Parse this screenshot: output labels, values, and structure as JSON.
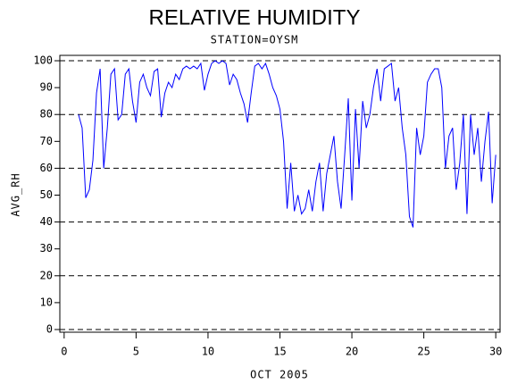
{
  "chart_data": {
    "type": "line",
    "title": "RELATIVE HUMIDITY",
    "subtitle": "STATION=OYSM",
    "x_label": "OCT 2005",
    "y_label": "AVG_RH",
    "xlim": [
      -0.3,
      30.3
    ],
    "ylim": [
      -1,
      102
    ],
    "xticks": [
      0,
      5,
      10,
      15,
      20,
      25,
      30
    ],
    "yticks": [
      0,
      10,
      20,
      30,
      40,
      50,
      60,
      70,
      80,
      90,
      100
    ],
    "grid_lines": [
      0,
      20,
      40,
      60,
      80,
      100
    ],
    "x": [
      1,
      1.25,
      1.5,
      1.75,
      2,
      2.25,
      2.5,
      2.75,
      3,
      3.25,
      3.5,
      3.75,
      4,
      4.25,
      4.5,
      4.75,
      5,
      5.25,
      5.5,
      5.75,
      6,
      6.25,
      6.5,
      6.75,
      7,
      7.25,
      7.5,
      7.75,
      8,
      8.25,
      8.5,
      8.75,
      9,
      9.25,
      9.5,
      9.75,
      10,
      10.25,
      10.5,
      10.75,
      11,
      11.25,
      11.5,
      11.75,
      12,
      12.25,
      12.5,
      12.75,
      13,
      13.25,
      13.5,
      13.75,
      14,
      14.25,
      14.5,
      14.75,
      15,
      15.25,
      15.5,
      15.75,
      16,
      16.25,
      16.5,
      16.75,
      17,
      17.25,
      17.5,
      17.75,
      18,
      18.25,
      18.5,
      18.75,
      19,
      19.25,
      19.5,
      19.75,
      20,
      20.25,
      20.5,
      20.75,
      21,
      21.25,
      21.5,
      21.75,
      22,
      22.25,
      22.5,
      22.75,
      23,
      23.25,
      23.5,
      23.75,
      24,
      24.25,
      24.5,
      24.75,
      25,
      25.25,
      25.5,
      25.75,
      26,
      26.25,
      26.5,
      26.75,
      27,
      27.25,
      27.5,
      27.75,
      28,
      28.25,
      28.5,
      28.75,
      29,
      29.25,
      29.5,
      29.75,
      30
    ],
    "series": [
      {
        "name": "AVG_RH",
        "color": "#0000ff",
        "values": [
          80,
          75,
          49,
          52,
          63,
          88,
          97,
          60,
          75,
          95,
          97,
          78,
          80,
          95,
          97,
          85,
          77,
          92,
          95,
          90,
          87,
          96,
          97,
          79,
          88,
          92,
          90,
          95,
          93,
          97,
          98,
          97,
          98,
          97,
          99,
          89,
          95,
          99,
          100,
          99,
          100,
          99,
          91,
          95,
          93,
          88,
          84,
          77,
          88,
          98,
          99,
          97,
          99,
          95,
          90,
          87,
          82,
          70,
          45,
          62,
          44,
          50,
          43,
          45,
          52,
          44,
          55,
          62,
          44,
          58,
          65,
          72,
          55,
          45,
          65,
          86,
          48,
          82,
          60,
          85,
          75,
          80,
          90,
          97,
          85,
          97,
          98,
          99,
          85,
          90,
          75,
          65,
          42,
          38,
          75,
          65,
          72,
          92,
          95,
          97,
          97,
          90,
          60,
          72,
          75,
          52,
          62,
          80,
          43,
          80,
          65,
          75,
          55,
          70,
          81,
          47,
          65
        ]
      }
    ]
  }
}
